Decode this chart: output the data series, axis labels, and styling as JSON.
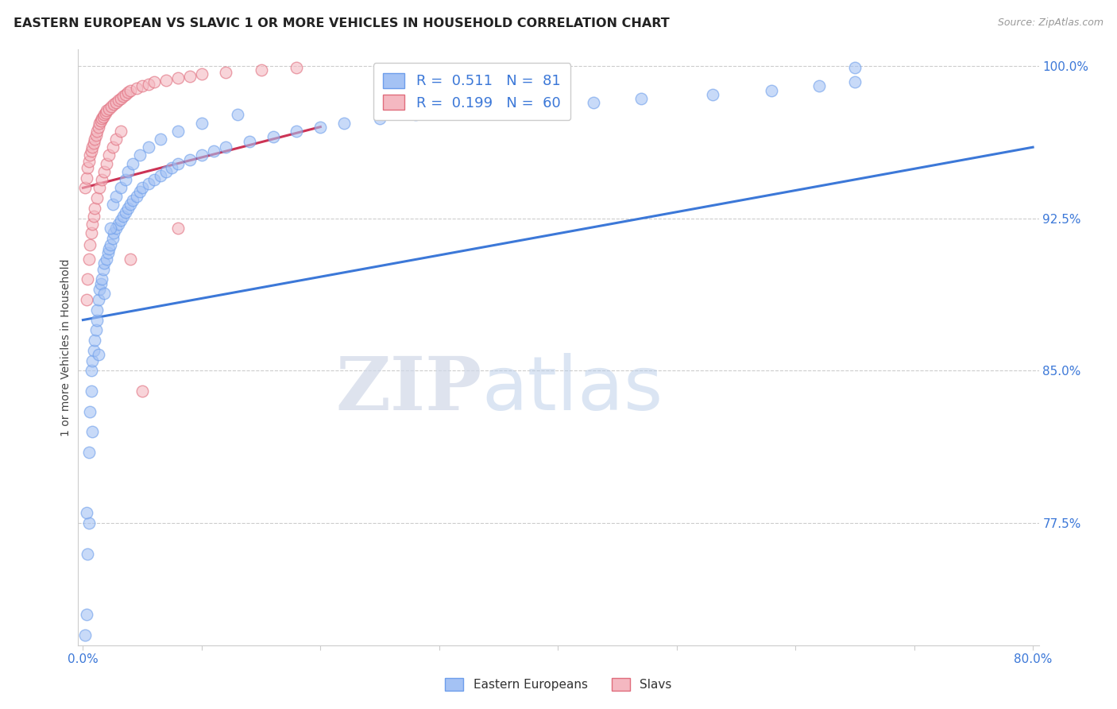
{
  "title": "EASTERN EUROPEAN VS SLAVIC 1 OR MORE VEHICLES IN HOUSEHOLD CORRELATION CHART",
  "source": "Source: ZipAtlas.com",
  "ylabel": "1 or more Vehicles in Household",
  "watermark_zip": "ZIP",
  "watermark_atlas": "atlas",
  "blue_color": "#a4c2f4",
  "pink_color": "#f4b8c1",
  "blue_edge_color": "#6d9eeb",
  "pink_edge_color": "#e06c7c",
  "blue_line_color": "#3c78d8",
  "pink_line_color": "#cc3355",
  "background_color": "#ffffff",
  "legend_label_color": "#3c78d8",
  "right_tick_color": "#3c78d8",
  "grid_color": "#cccccc",
  "x_min": 0.0,
  "x_max": 0.8,
  "y_min": 0.715,
  "y_max": 1.008,
  "right_yticks": [
    1.0,
    0.925,
    0.85,
    0.775
  ],
  "right_ytick_labels": [
    "100.0%",
    "92.5%",
    "85.0%",
    "77.5%"
  ],
  "blue_x": [
    0.002,
    0.003,
    0.004,
    0.005,
    0.005,
    0.006,
    0.007,
    0.007,
    0.008,
    0.009,
    0.01,
    0.011,
    0.012,
    0.012,
    0.013,
    0.014,
    0.015,
    0.016,
    0.017,
    0.018,
    0.02,
    0.021,
    0.022,
    0.023,
    0.025,
    0.026,
    0.028,
    0.03,
    0.032,
    0.034,
    0.036,
    0.038,
    0.04,
    0.042,
    0.045,
    0.048,
    0.05,
    0.055,
    0.06,
    0.065,
    0.07,
    0.075,
    0.08,
    0.09,
    0.1,
    0.11,
    0.12,
    0.14,
    0.16,
    0.18,
    0.2,
    0.22,
    0.25,
    0.28,
    0.32,
    0.38,
    0.43,
    0.47,
    0.53,
    0.58,
    0.62,
    0.65,
    0.003,
    0.008,
    0.013,
    0.018,
    0.023,
    0.025,
    0.028,
    0.032,
    0.036,
    0.038,
    0.042,
    0.048,
    0.055,
    0.065,
    0.08,
    0.1,
    0.13,
    0.65
  ],
  "blue_y": [
    0.72,
    0.73,
    0.76,
    0.775,
    0.81,
    0.83,
    0.84,
    0.85,
    0.855,
    0.86,
    0.865,
    0.87,
    0.875,
    0.88,
    0.885,
    0.89,
    0.893,
    0.895,
    0.9,
    0.903,
    0.905,
    0.908,
    0.91,
    0.912,
    0.915,
    0.918,
    0.92,
    0.922,
    0.924,
    0.926,
    0.928,
    0.93,
    0.932,
    0.934,
    0.936,
    0.938,
    0.94,
    0.942,
    0.944,
    0.946,
    0.948,
    0.95,
    0.952,
    0.954,
    0.956,
    0.958,
    0.96,
    0.963,
    0.965,
    0.968,
    0.97,
    0.972,
    0.974,
    0.976,
    0.978,
    0.98,
    0.982,
    0.984,
    0.986,
    0.988,
    0.99,
    0.992,
    0.78,
    0.82,
    0.858,
    0.888,
    0.92,
    0.932,
    0.936,
    0.94,
    0.944,
    0.948,
    0.952,
    0.956,
    0.96,
    0.964,
    0.968,
    0.972,
    0.976,
    0.999
  ],
  "pink_x": [
    0.002,
    0.003,
    0.004,
    0.005,
    0.006,
    0.007,
    0.008,
    0.009,
    0.01,
    0.011,
    0.012,
    0.013,
    0.014,
    0.015,
    0.016,
    0.017,
    0.018,
    0.019,
    0.02,
    0.022,
    0.024,
    0.026,
    0.028,
    0.03,
    0.032,
    0.034,
    0.036,
    0.038,
    0.04,
    0.045,
    0.05,
    0.055,
    0.06,
    0.07,
    0.08,
    0.09,
    0.1,
    0.12,
    0.15,
    0.18,
    0.003,
    0.004,
    0.005,
    0.006,
    0.007,
    0.008,
    0.009,
    0.01,
    0.012,
    0.014,
    0.016,
    0.018,
    0.02,
    0.022,
    0.025,
    0.028,
    0.032,
    0.04,
    0.05,
    0.08
  ],
  "pink_y": [
    0.94,
    0.945,
    0.95,
    0.953,
    0.956,
    0.958,
    0.96,
    0.962,
    0.964,
    0.966,
    0.968,
    0.97,
    0.972,
    0.973,
    0.974,
    0.975,
    0.976,
    0.977,
    0.978,
    0.979,
    0.98,
    0.981,
    0.982,
    0.983,
    0.984,
    0.985,
    0.986,
    0.987,
    0.988,
    0.989,
    0.99,
    0.991,
    0.992,
    0.993,
    0.994,
    0.995,
    0.996,
    0.997,
    0.998,
    0.999,
    0.885,
    0.895,
    0.905,
    0.912,
    0.918,
    0.922,
    0.926,
    0.93,
    0.935,
    0.94,
    0.944,
    0.948,
    0.952,
    0.956,
    0.96,
    0.964,
    0.968,
    0.905,
    0.84,
    0.92
  ],
  "blue_trendline_x": [
    0.0,
    0.8
  ],
  "blue_trendline_y": [
    0.875,
    0.96
  ],
  "pink_trendline_x": [
    0.0,
    0.2
  ],
  "pink_trendline_y": [
    0.94,
    0.97
  ]
}
